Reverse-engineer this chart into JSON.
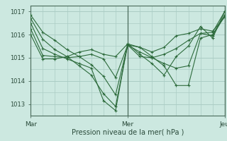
{
  "xlabel": "Pression niveau de la mer( hPa )",
  "bg_color": "#cce8e0",
  "grid_color": "#aaccc4",
  "line_color": "#2d6b3c",
  "vline_color": "#4a6a5a",
  "ylim": [
    1012.5,
    1017.25
  ],
  "xlim": [
    0,
    48
  ],
  "xticks": [
    0,
    24,
    48
  ],
  "xtick_labels": [
    "Mar",
    "Mer",
    "Jeu"
  ],
  "yticks": [
    1013,
    1014,
    1015,
    1016,
    1017
  ],
  "vline_x": 24,
  "series": [
    [
      0,
      1016.85,
      3,
      1016.1,
      6,
      1015.75,
      9,
      1015.35,
      12,
      1015.05,
      15,
      1014.7,
      18,
      1014.2,
      21,
      1013.4,
      24,
      1015.55,
      27,
      1015.45,
      30,
      1015.05,
      33,
      1014.65,
      36,
      1013.8,
      39,
      1013.8,
      42,
      1015.85,
      45,
      1016.0,
      48,
      1016.85
    ],
    [
      0,
      1016.7,
      3,
      1015.8,
      6,
      1015.35,
      9,
      1015.05,
      12,
      1014.65,
      15,
      1014.25,
      18,
      1013.45,
      21,
      1012.9,
      24,
      1015.55,
      27,
      1015.25,
      30,
      1015.0,
      33,
      1014.75,
      36,
      1014.55,
      39,
      1014.65,
      42,
      1016.05,
      45,
      1016.1,
      48,
      1017.0
    ],
    [
      0,
      1016.5,
      3,
      1015.4,
      6,
      1015.15,
      9,
      1014.95,
      12,
      1014.75,
      15,
      1014.55,
      18,
      1013.15,
      21,
      1012.72,
      24,
      1015.6,
      27,
      1015.15,
      30,
      1014.75,
      33,
      1014.25,
      36,
      1015.05,
      39,
      1015.5,
      42,
      1016.35,
      45,
      1015.85,
      48,
      1017.0
    ],
    [
      0,
      1016.25,
      3,
      1015.1,
      6,
      1015.05,
      9,
      1015.0,
      12,
      1015.05,
      15,
      1015.15,
      18,
      1014.95,
      21,
      1014.15,
      24,
      1015.55,
      27,
      1015.05,
      30,
      1015.0,
      33,
      1015.15,
      36,
      1015.4,
      39,
      1015.75,
      42,
      1016.05,
      45,
      1015.95,
      48,
      1016.8
    ],
    [
      0,
      1016.0,
      3,
      1014.95,
      6,
      1014.95,
      9,
      1015.05,
      12,
      1015.25,
      15,
      1015.35,
      18,
      1015.15,
      21,
      1015.05,
      24,
      1015.6,
      27,
      1015.45,
      30,
      1015.25,
      33,
      1015.45,
      36,
      1015.95,
      39,
      1016.05,
      42,
      1016.25,
      45,
      1016.15,
      48,
      1016.75
    ]
  ]
}
